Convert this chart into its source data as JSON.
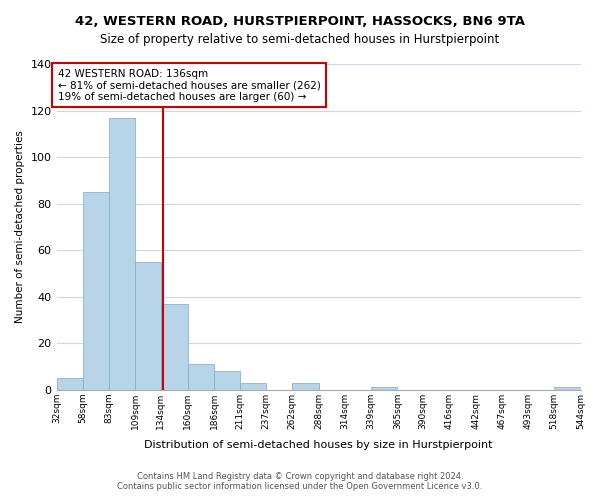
{
  "title": "42, WESTERN ROAD, HURSTPIERPOINT, HASSOCKS, BN6 9TA",
  "subtitle": "Size of property relative to semi-detached houses in Hurstpierpoint",
  "xlabel": "Distribution of semi-detached houses by size in Hurstpierpoint",
  "ylabel": "Number of semi-detached properties",
  "bin_edges": [
    32,
    58,
    83,
    109,
    134,
    160,
    186,
    211,
    237,
    262,
    288,
    314,
    339,
    365,
    390,
    416,
    442,
    467,
    493,
    518,
    544
  ],
  "bin_labels": [
    "32sqm",
    "58sqm",
    "83sqm",
    "109sqm",
    "134sqm",
    "160sqm",
    "186sqm",
    "211sqm",
    "237sqm",
    "262sqm",
    "288sqm",
    "314sqm",
    "339sqm",
    "365sqm",
    "390sqm",
    "416sqm",
    "442sqm",
    "467sqm",
    "493sqm",
    "518sqm",
    "544sqm"
  ],
  "counts": [
    5,
    85,
    117,
    55,
    37,
    11,
    8,
    3,
    0,
    3,
    0,
    0,
    1,
    0,
    0,
    0,
    0,
    0,
    0,
    1
  ],
  "bar_color": "#b8d4e8",
  "bar_edge_color": "#7aaac8",
  "marker_value": 136,
  "marker_color": "#cc0000",
  "ylim": [
    0,
    140
  ],
  "yticks": [
    0,
    20,
    40,
    60,
    80,
    100,
    120,
    140
  ],
  "annotation_title": "42 WESTERN ROAD: 136sqm",
  "annotation_line1": "← 81% of semi-detached houses are smaller (262)",
  "annotation_line2": "19% of semi-detached houses are larger (60) →",
  "footer_line1": "Contains HM Land Registry data © Crown copyright and database right 2024.",
  "footer_line2": "Contains public sector information licensed under the Open Government Licence v3.0.",
  "background_color": "#ffffff",
  "grid_color": "#c8d8e8"
}
